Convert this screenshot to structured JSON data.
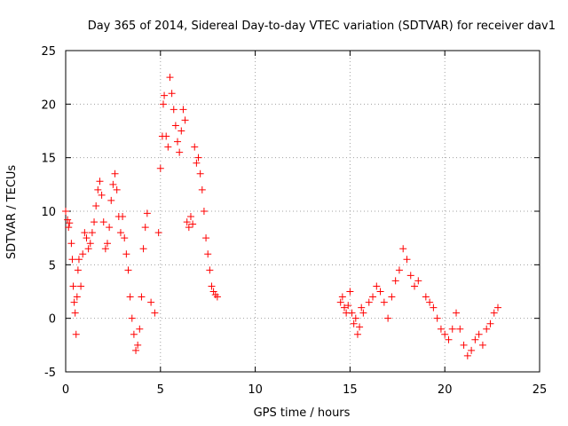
{
  "chart_data": {
    "type": "scatter",
    "title": "Day 365 of 2014, Sidereal Day-to-day VTEC variation (SDTVAR) for receiver dav1",
    "xlabel": "GPS time / hours",
    "ylabel": "SDTVAR / TECUs",
    "xlim": [
      0,
      25
    ],
    "ylim": [
      -5,
      25
    ],
    "xticks": [
      0,
      5,
      10,
      15,
      20,
      25
    ],
    "yticks": [
      -5,
      0,
      5,
      10,
      15,
      20,
      25
    ],
    "grid": true,
    "marker": "+",
    "series_color": "#ff0000",
    "x": [
      0.0,
      0.1,
      0.15,
      0.2,
      0.3,
      0.35,
      0.4,
      0.45,
      0.5,
      0.55,
      0.6,
      0.65,
      0.7,
      0.8,
      0.9,
      1.0,
      1.1,
      1.2,
      1.3,
      1.4,
      1.5,
      1.6,
      1.7,
      1.8,
      1.9,
      2.0,
      2.1,
      2.2,
      2.3,
      2.4,
      2.5,
      2.6,
      2.7,
      2.8,
      2.9,
      3.0,
      3.1,
      3.2,
      3.3,
      3.4,
      3.5,
      3.6,
      3.7,
      3.8,
      3.9,
      4.0,
      4.1,
      4.2,
      4.3,
      4.5,
      4.7,
      4.9,
      5.0,
      5.1,
      5.15,
      5.2,
      5.3,
      5.4,
      5.5,
      5.6,
      5.7,
      5.8,
      5.9,
      6.0,
      6.1,
      6.2,
      6.3,
      6.4,
      6.5,
      6.6,
      6.7,
      6.8,
      6.9,
      7.0,
      7.1,
      7.2,
      7.3,
      7.4,
      7.5,
      7.6,
      7.7,
      7.8,
      7.9,
      8.0,
      14.5,
      14.6,
      14.7,
      14.8,
      14.9,
      15.0,
      15.1,
      15.2,
      15.3,
      15.4,
      15.5,
      15.6,
      15.7,
      16.0,
      16.2,
      16.4,
      16.6,
      16.8,
      17.0,
      17.2,
      17.4,
      17.6,
      17.8,
      18.0,
      18.2,
      18.4,
      18.6,
      19.0,
      19.2,
      19.4,
      19.6,
      19.8,
      20.0,
      20.2,
      20.4,
      20.6,
      20.8,
      21.0,
      21.2,
      21.4,
      21.6,
      21.8,
      22.0,
      22.2,
      22.4,
      22.6,
      22.8
    ],
    "y": [
      10.0,
      9.2,
      8.5,
      8.9,
      7.0,
      5.5,
      3.0,
      1.5,
      0.5,
      -1.5,
      2.0,
      4.5,
      5.5,
      3.0,
      6.0,
      8.0,
      7.5,
      6.5,
      7.0,
      8.0,
      9.0,
      10.5,
      12.0,
      12.8,
      11.5,
      9.0,
      6.5,
      7.0,
      8.5,
      11.0,
      12.5,
      13.5,
      12.0,
      9.5,
      8.0,
      9.5,
      7.5,
      6.0,
      4.5,
      2.0,
      0.0,
      -1.5,
      -3.0,
      -2.5,
      -1.0,
      2.0,
      6.5,
      8.5,
      9.8,
      1.5,
      0.5,
      8.0,
      14.0,
      17.0,
      20.0,
      20.8,
      17.0,
      16.0,
      22.5,
      21.0,
      19.5,
      18.0,
      16.5,
      15.5,
      17.5,
      19.5,
      18.5,
      9.0,
      8.5,
      9.5,
      8.8,
      16.0,
      14.5,
      15.0,
      13.5,
      12.0,
      10.0,
      7.5,
      6.0,
      4.5,
      3.0,
      2.5,
      2.2,
      2.0,
      1.5,
      2.0,
      1.0,
      0.5,
      1.2,
      2.5,
      0.5,
      -0.5,
      0.0,
      -1.5,
      -0.8,
      1.0,
      0.5,
      1.5,
      2.0,
      3.0,
      2.5,
      1.5,
      0.0,
      2.0,
      3.5,
      4.5,
      6.5,
      5.5,
      4.0,
      3.0,
      3.5,
      2.0,
      1.5,
      1.0,
      0.0,
      -1.0,
      -1.5,
      -2.0,
      -1.0,
      0.5,
      -1.0,
      -2.5,
      -3.5,
      -3.0,
      -2.0,
      -1.5,
      -2.5,
      -1.0,
      -0.5,
      0.5,
      1.0
    ]
  }
}
